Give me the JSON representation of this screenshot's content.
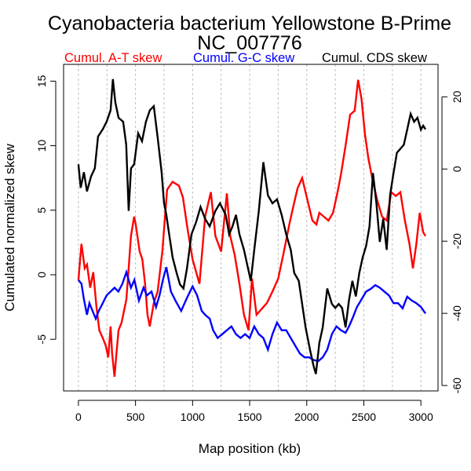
{
  "chart_data": {
    "type": "line",
    "title": "Cyanobacteria bacterium Yellowstone B-Prime",
    "subtitle": "NC_007776",
    "xlabel": "Map position (kb)",
    "ylabel": "Cumulated normalized skew",
    "xlim": [
      -130,
      3150
    ],
    "ylim_left": [
      -9.0,
      16.3
    ],
    "ylim_right": [
      -61.5,
      29.0
    ],
    "x_ticks": [
      0,
      500,
      1000,
      1500,
      2000,
      2500,
      3000
    ],
    "x_tick_labels": [
      "0",
      "500",
      "1000",
      "1500",
      "2000",
      "2500",
      "3000"
    ],
    "x_gridlines": [
      0,
      250,
      500,
      750,
      1000,
      1250,
      1500,
      1750,
      2000,
      2250,
      2500,
      2750,
      3000
    ],
    "y_left_ticks": [
      -5,
      0,
      5,
      10,
      15
    ],
    "y_left_tick_labels": [
      "-5",
      "0",
      "5",
      "10",
      "15"
    ],
    "y_right_ticks": [
      -60,
      -40,
      -20,
      0,
      20
    ],
    "y_right_tick_labels": [
      "-60",
      "-40",
      "-20",
      "0",
      "20"
    ],
    "grid": "vertical dashed",
    "legend_placement": "top",
    "series": [
      {
        "name": "Cumul. A-T skew",
        "color": "#ff0000",
        "axis": "left",
        "x": [
          0,
          15,
          27,
          55,
          75,
          103,
          130,
          158,
          183,
          213,
          240,
          261,
          282,
          295,
          316,
          330,
          351,
          378,
          420,
          440,
          460,
          488,
          502,
          536,
          560,
          584,
          605,
          625,
          660,
          694,
          735,
          777,
          825,
          880,
          915,
          955,
          1000,
          1060,
          1110,
          1160,
          1200,
          1250,
          1300,
          1330,
          1370,
          1410,
          1450,
          1490,
          1520,
          1560,
          1620,
          1650,
          1700,
          1750,
          1800,
          1850,
          1880,
          1920,
          1960,
          2000,
          2050,
          2085,
          2110,
          2150,
          2190,
          2230,
          2270,
          2300,
          2340,
          2380,
          2420,
          2450,
          2480,
          2510,
          2540,
          2580,
          2620,
          2660,
          2700,
          2740,
          2780,
          2820,
          2860,
          2900,
          2930,
          2960,
          2990,
          3020,
          3040
        ],
        "y": [
          -0.4,
          1.2,
          2.4,
          0.5,
          0.8,
          -1.0,
          0.2,
          -2.5,
          -4.3,
          -4.9,
          -5.5,
          -6.4,
          -4.0,
          -6.1,
          -7.9,
          -6.4,
          -4.3,
          -3.7,
          -1.9,
          0.5,
          3.0,
          4.5,
          3.9,
          1.8,
          1.2,
          -0.7,
          -3.1,
          -4.0,
          -2.2,
          -1.3,
          1.8,
          6.6,
          7.2,
          6.9,
          6.0,
          3.6,
          1.2,
          -0.7,
          4.5,
          6.4,
          3.0,
          1.8,
          6.3,
          3.0,
          1.5,
          -0.7,
          -3.1,
          -4.3,
          -0.3,
          -3.1,
          -2.5,
          -2.2,
          -1.3,
          -0.3,
          1.8,
          4.0,
          5.2,
          6.7,
          7.5,
          6.0,
          4.2,
          3.9,
          4.8,
          4.5,
          4.2,
          4.8,
          6.4,
          7.8,
          10.0,
          12.4,
          12.7,
          15.1,
          13.6,
          10.9,
          9.0,
          7.2,
          5.7,
          4.5,
          4.2,
          6.4,
          6.1,
          6.4,
          4.2,
          2.4,
          0.5,
          2.4,
          4.8,
          3.3,
          3.0
        ]
      },
      {
        "name": "Cumul. G-C skew",
        "color": "#0000ff",
        "axis": "left",
        "x": [
          0,
          27,
          48,
          75,
          96,
          124,
          151,
          178,
          213,
          247,
          282,
          316,
          350,
          385,
          420,
          440,
          460,
          490,
          530,
          570,
          600,
          640,
          680,
          710,
          740,
          770,
          810,
          850,
          900,
          950,
          1000,
          1040,
          1080,
          1110,
          1150,
          1180,
          1220,
          1260,
          1300,
          1340,
          1380,
          1420,
          1460,
          1500,
          1540,
          1580,
          1620,
          1660,
          1700,
          1740,
          1780,
          1820,
          1860,
          1900,
          1940,
          1980,
          2020,
          2060,
          2100,
          2140,
          2180,
          2220,
          2260,
          2300,
          2340,
          2370,
          2400,
          2440,
          2480,
          2520,
          2560,
          2600,
          2640,
          2680,
          2720,
          2760,
          2800,
          2840,
          2880,
          2920,
          2960,
          3000,
          3040
        ],
        "y": [
          -0.4,
          -0.7,
          -1.9,
          -3.1,
          -2.2,
          -2.8,
          -3.4,
          -2.8,
          -2.2,
          -1.6,
          -1.3,
          -1.0,
          -1.3,
          -0.7,
          0.2,
          -0.4,
          -1.0,
          -0.4,
          -2.0,
          -1.0,
          -1.6,
          -1.3,
          -2.5,
          -1.6,
          -0.4,
          0.6,
          -1.3,
          -2.0,
          -2.8,
          -1.8,
          -0.9,
          -1.6,
          -2.8,
          -3.1,
          -3.4,
          -4.3,
          -4.9,
          -4.6,
          -4.3,
          -4.0,
          -4.6,
          -4.9,
          -4.6,
          -4.9,
          -4.0,
          -4.6,
          -4.9,
          -5.8,
          -4.6,
          -3.7,
          -4.3,
          -4.3,
          -4.9,
          -5.5,
          -6.1,
          -6.4,
          -6.4,
          -6.6,
          -6.7,
          -6.4,
          -5.8,
          -4.6,
          -4.0,
          -4.3,
          -4.5,
          -4.0,
          -3.4,
          -2.5,
          -1.9,
          -1.3,
          -1.1,
          -0.8,
          -1.0,
          -1.3,
          -1.6,
          -2.2,
          -2.2,
          -2.6,
          -1.7,
          -2.0,
          -2.2,
          -2.5,
          -3.0
        ]
      },
      {
        "name": "Cumul. CDS skew",
        "color": "#000000",
        "axis": "right",
        "x": [
          0,
          20,
          48,
          75,
          110,
          144,
          172,
          213,
          247,
          282,
          302,
          323,
          351,
          392,
          419,
          440,
          461,
          488,
          523,
          557,
          591,
          626,
          660,
          694,
          729,
          750,
          770,
          795,
          825,
          860,
          890,
          920,
          950,
          990,
          1030,
          1070,
          1110,
          1150,
          1200,
          1240,
          1290,
          1320,
          1350,
          1380,
          1410,
          1450,
          1480,
          1510,
          1540,
          1580,
          1620,
          1660,
          1700,
          1740,
          1780,
          1820,
          1860,
          1890,
          1930,
          1960,
          1990,
          2030,
          2060,
          2080,
          2110,
          2140,
          2180,
          2220,
          2250,
          2280,
          2310,
          2340,
          2370,
          2400,
          2430,
          2460,
          2490,
          2520,
          2550,
          2580,
          2610,
          2640,
          2670,
          2700,
          2730,
          2760,
          2790,
          2820,
          2850,
          2880,
          2910,
          2940,
          2970,
          3000,
          3020,
          3040
        ],
        "y": [
          1.3,
          -5.2,
          -0.9,
          -6.2,
          -2.1,
          0.2,
          9.0,
          11.0,
          13.1,
          16.3,
          24.9,
          18.5,
          14.2,
          13.1,
          6.7,
          -11.6,
          0.2,
          1.3,
          9.9,
          7.7,
          13.1,
          16.3,
          17.4,
          8.8,
          -0.9,
          -9.5,
          -12.7,
          -18.1,
          -24.5,
          -28.8,
          -32.0,
          -33.1,
          -27.7,
          -18.1,
          -14.8,
          -10.5,
          -13.8,
          -15.9,
          -11.6,
          -9.5,
          -12.7,
          -18.1,
          -15.9,
          -12.7,
          -18.1,
          -22.4,
          -26.7,
          -31.0,
          -22.4,
          -11.6,
          1.9,
          -7.3,
          -9.5,
          -8.4,
          -12.7,
          -18.1,
          -22.4,
          -28.8,
          -31.0,
          -37.4,
          -43.9,
          -50.3,
          -54.6,
          -56.8,
          -48.2,
          -43.9,
          -33.1,
          -37.4,
          -38.5,
          -37.4,
          -38.5,
          -43.9,
          -36.3,
          -31.0,
          -35.3,
          -28.8,
          -24.5,
          -21.3,
          -15.9,
          -1.1,
          -9.5,
          -20.2,
          -13.8,
          -22.4,
          -7.3,
          -1.1,
          4.5,
          5.6,
          6.7,
          10.9,
          15.3,
          13.1,
          14.2,
          10.9,
          12.0,
          11.0
        ]
      }
    ]
  }
}
